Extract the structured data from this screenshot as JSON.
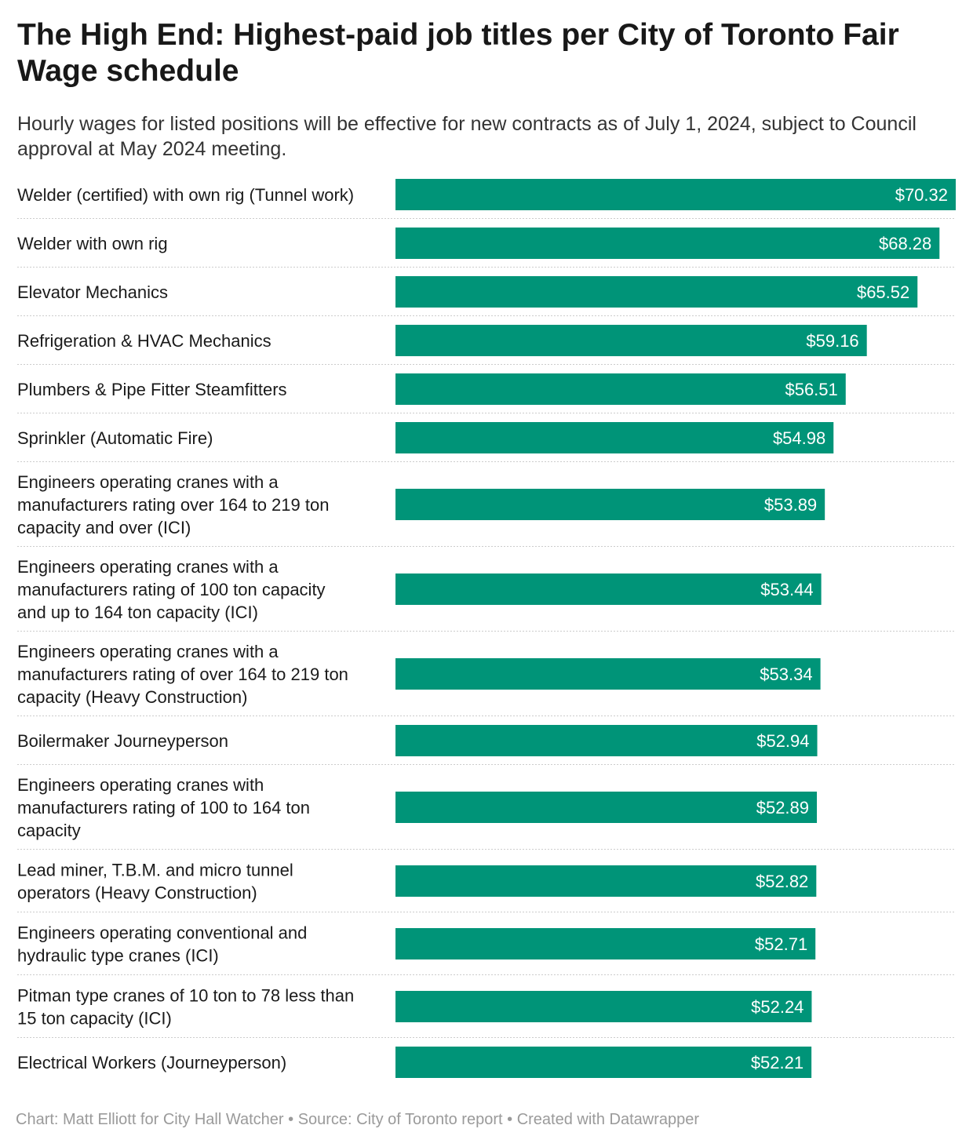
{
  "title": "The High End: Highest-paid job titles per City of Toronto Fair Wage schedule",
  "subtitle": "Hourly wages for listed positions will be effective for new contracts as of July 1, 2024, subject to Council approval at May 2024 meeting.",
  "footer": {
    "credit": "Chart: Matt Elliott for City Hall Watcher",
    "source": "Source: City of Toronto report",
    "tool": "Created with Datawrapper",
    "separator": " • "
  },
  "colors": {
    "bar": "#009478",
    "bar_label": "#ffffff",
    "row_divider": "#cccccc"
  },
  "chart_data": {
    "type": "bar",
    "orientation": "horizontal",
    "value_prefix": "$",
    "xlim": [
      0,
      70.32
    ],
    "grid": false,
    "rows": [
      {
        "label": [
          "Welder (certified) with own rig (Tunnel work)"
        ],
        "value": 70.32,
        "value_label": "$70.32"
      },
      {
        "label": [
          "Welder with own rig"
        ],
        "value": 68.28,
        "value_label": "$68.28"
      },
      {
        "label": [
          "Elevator Mechanics"
        ],
        "value": 65.52,
        "value_label": "$65.52"
      },
      {
        "label": [
          "Refrigeration & HVAC Mechanics"
        ],
        "value": 59.16,
        "value_label": "$59.16"
      },
      {
        "label": [
          "Plumbers & Pipe Fitter Steamfitters"
        ],
        "value": 56.51,
        "value_label": "$56.51"
      },
      {
        "label": [
          "Sprinkler (Automatic Fire)"
        ],
        "value": 54.98,
        "value_label": "$54.98"
      },
      {
        "label": [
          "Engineers operating cranes with a",
          "manufacturers rating over 164 to 219 ton",
          "capacity and over (ICI)"
        ],
        "value": 53.89,
        "value_label": "$53.89"
      },
      {
        "label": [
          "Engineers operating cranes with a",
          "manufacturers rating of 100 ton capacity",
          "and up to 164 ton capacity (ICI)"
        ],
        "value": 53.44,
        "value_label": "$53.44"
      },
      {
        "label": [
          "Engineers operating cranes with a",
          "manufacturers rating of over 164 to 219 ton",
          "capacity (Heavy Construction)"
        ],
        "value": 53.34,
        "value_label": "$53.34"
      },
      {
        "label": [
          "Boilermaker Journeyperson"
        ],
        "value": 52.94,
        "value_label": "$52.94"
      },
      {
        "label": [
          "Engineers operating cranes with",
          "manufacturers rating of 100 to 164 ton",
          "capacity"
        ],
        "value": 52.89,
        "value_label": "$52.89"
      },
      {
        "label": [
          "Lead miner, T.B.M. and micro tunnel",
          "operators (Heavy Construction)"
        ],
        "value": 52.82,
        "value_label": "$52.82"
      },
      {
        "label": [
          "Engineers operating conventional and",
          "hydraulic type cranes (ICI)"
        ],
        "value": 52.71,
        "value_label": "$52.71"
      },
      {
        "label": [
          "Pitman type cranes of 10 ton to 78 less than",
          "15 ton capacity (ICI)"
        ],
        "value": 52.24,
        "value_label": "$52.24"
      },
      {
        "label": [
          "Electrical Workers (Journeyperson)"
        ],
        "value": 52.21,
        "value_label": "$52.21"
      }
    ]
  }
}
